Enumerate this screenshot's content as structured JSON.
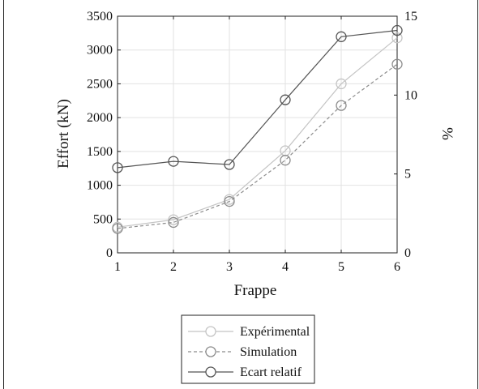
{
  "chart_data": {
    "type": "line",
    "x": [
      1,
      2,
      3,
      4,
      5,
      6
    ],
    "xlabel": "Frappe",
    "ylabel": "Effort (kN)",
    "y2label": "%",
    "xlim": [
      1,
      6
    ],
    "ylim": [
      0,
      3500
    ],
    "y2lim": [
      0,
      15
    ],
    "xticks": [
      1,
      2,
      3,
      4,
      5,
      6
    ],
    "yticks": [
      0,
      500,
      1000,
      1500,
      2000,
      2500,
      3000,
      3500
    ],
    "y2ticks": [
      0,
      5,
      10,
      15
    ],
    "grid": true,
    "legend_position": "bottom-outside",
    "series": [
      {
        "name": "Expérimental",
        "axis": "left",
        "color": "#c4c4c4",
        "dash": "solid",
        "marker": "circle",
        "values": [
          380,
          490,
          790,
          1510,
          2500,
          3180
        ]
      },
      {
        "name": "Simulation",
        "axis": "left",
        "color": "#8c8c8c",
        "dash": "dashed",
        "marker": "circle",
        "values": [
          360,
          450,
          760,
          1370,
          2180,
          2790
        ]
      },
      {
        "name": "Ecart relatif",
        "axis": "right",
        "color": "#555555",
        "dash": "solid",
        "marker": "circle",
        "values": [
          5.4,
          5.8,
          5.6,
          9.7,
          13.7,
          14.1
        ]
      }
    ]
  }
}
